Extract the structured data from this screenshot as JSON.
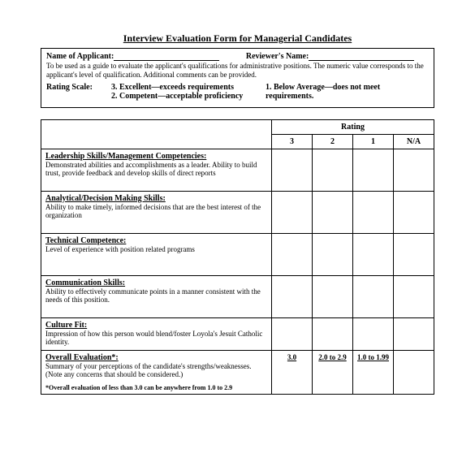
{
  "title": "Interview Evaluation Form for Managerial Candidates",
  "header": {
    "applicant_label": "Name of Applicant:",
    "reviewer_label": "Reviewer's Name:",
    "description": "To be used as a guide to evaluate the applicant's qualifications for administrative positions. The numeric value corresponds to the applicant's level of qualification. Additional comments can be provided.",
    "scale_label": "Rating Scale:",
    "scale3": "3. Excellent—exceeds requirements",
    "scale2": "2. Competent—acceptable proficiency",
    "scale1": "1. Below Average—does not meet requirements."
  },
  "rating_table": {
    "header": "Rating",
    "cols": {
      "c3": "3",
      "c2": "2",
      "c1": "1",
      "cna": "N/A"
    },
    "rows": [
      {
        "title": "Leadership Skills/Management Competencies:",
        "desc": "Demonstrated abilities and accomplishments as a leader. Ability to build trust, provide feedback and develop skills of direct reports"
      },
      {
        "title": "Analytical/Decision Making Skills:",
        "desc": "Ability to make timely, informed decisions that are the best interest of the organization"
      },
      {
        "title": "Technical Competence:",
        "desc": "Level of experience with position related programs"
      },
      {
        "title": "Communication Skills:",
        "desc": "Ability to effectively communicate points in a manner consistent with the needs of this position."
      },
      {
        "title": "Culture Fit:",
        "desc": "Impression of how this person would blend/foster Loyola's Jesuit Catholic identity."
      }
    ],
    "overall": {
      "title": "Overall Evaluation*:",
      "desc": "Summary of your perceptions of the candidate's strengths/weaknesses. (Note any concerns that should be considered.)",
      "v3": "3.0",
      "v2": "2.0 to 2.9",
      "v1": "1.0 to 1.99",
      "footnote": "*Overall evaluation of less than 3.0 can be anywhere from 1.0 to 2.9"
    }
  }
}
